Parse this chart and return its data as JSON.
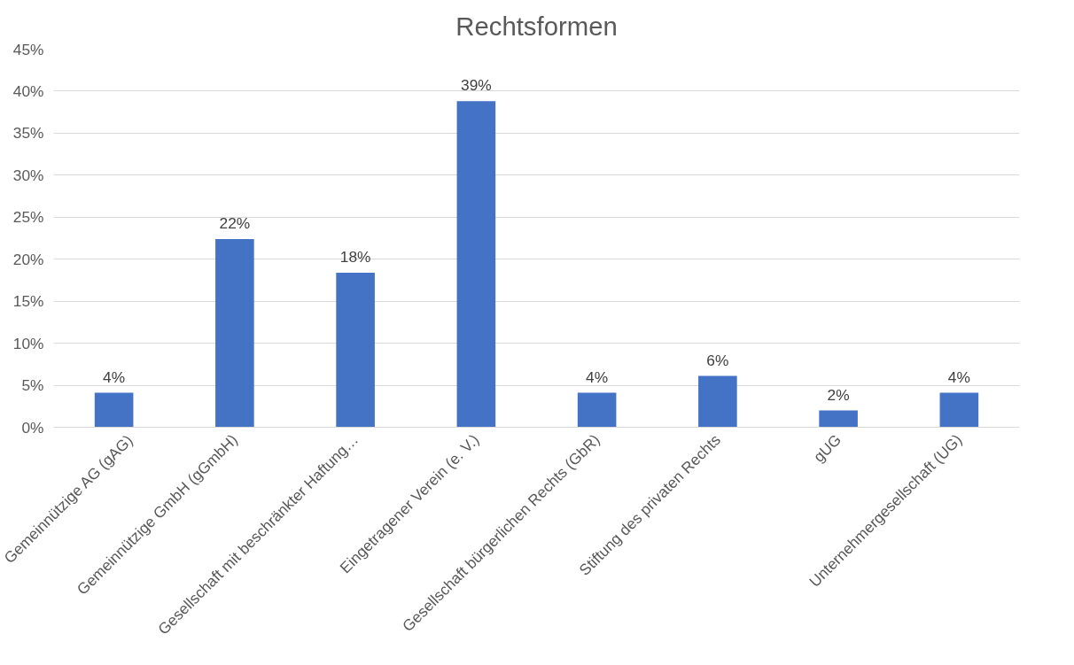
{
  "chart_data": {
    "type": "bar",
    "title": "Rechtsformen",
    "categories": [
      "Gemeinnützige AG (gAG)",
      "Gemeinnützige GmbH (gGmbH)",
      "Gesellschaft mit beschränkter Haftung…",
      "Eingetragener Verein (e. V.)",
      "Gesellschaft bürgerlichen Rechts (GbR)",
      "Stiftung des privaten Rechts",
      "gUG",
      "Unternehmergesellschaft (UG)"
    ],
    "values": [
      4.1,
      22.4,
      18.4,
      38.8,
      4.1,
      6.1,
      2.0,
      4.1
    ],
    "value_labels": [
      "4%",
      "22%",
      "18%",
      "39%",
      "4%",
      "6%",
      "2%",
      "4%"
    ],
    "color": "#4472c4",
    "ylim": [
      0,
      45
    ],
    "yticks": [
      {
        "value": 0,
        "label": "0%"
      },
      {
        "value": 5,
        "label": "5%"
      },
      {
        "value": 10,
        "label": "10%"
      },
      {
        "value": 15,
        "label": "15%"
      },
      {
        "value": 20,
        "label": "20%"
      },
      {
        "value": 25,
        "label": "25%"
      },
      {
        "value": 30,
        "label": "30%"
      },
      {
        "value": 35,
        "label": "35%"
      },
      {
        "value": 40,
        "label": "40%"
      },
      {
        "value": 45,
        "label": "45%"
      }
    ],
    "grid": "y"
  }
}
